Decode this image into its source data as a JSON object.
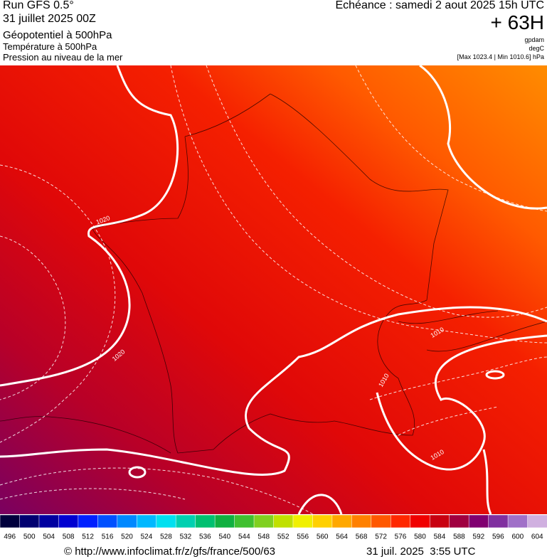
{
  "header": {
    "run": "Run GFS 0.5°",
    "date": "31 juillet 2025 00Z",
    "field1": "Géopotentiel à 500hPa",
    "field2": "Température à 500hPa",
    "field3": "Pression au niveau de la mer",
    "echeance": "Echéance : samedi 2 aout 2025 15h UTC",
    "lead": "+ 63H",
    "unit1": "gpdam",
    "unit2": "degC",
    "range": "[Max 1023.4 | Min 1010.6] hPa"
  },
  "map": {
    "contour_labels": [
      "1020",
      "1020",
      "1010",
      "1010",
      "1010"
    ]
  },
  "colorbar": {
    "labels": [
      496,
      500,
      504,
      508,
      512,
      516,
      520,
      524,
      528,
      532,
      536,
      540,
      544,
      548,
      552,
      556,
      560,
      564,
      568,
      572,
      576,
      580,
      584,
      588,
      592,
      596,
      600,
      604
    ],
    "colors": [
      "#00003c",
      "#000070",
      "#0000a0",
      "#0000d0",
      "#0020ff",
      "#0050ff",
      "#0088ff",
      "#00b8ff",
      "#00e0f0",
      "#00d0b0",
      "#00c070",
      "#10b040",
      "#40c030",
      "#80d020",
      "#c0e000",
      "#f0f000",
      "#ffd000",
      "#ffa800",
      "#ff8000",
      "#ff5800",
      "#ff2800",
      "#f00000",
      "#c80010",
      "#a00040",
      "#800070",
      "#8030a0",
      "#a070c8",
      "#d0b0e0"
    ]
  },
  "footer": {
    "url": "© http://www.infoclimat.fr/z/gfs/france/500/63",
    "time": "31 juil. 2025  3:55 UTC"
  }
}
